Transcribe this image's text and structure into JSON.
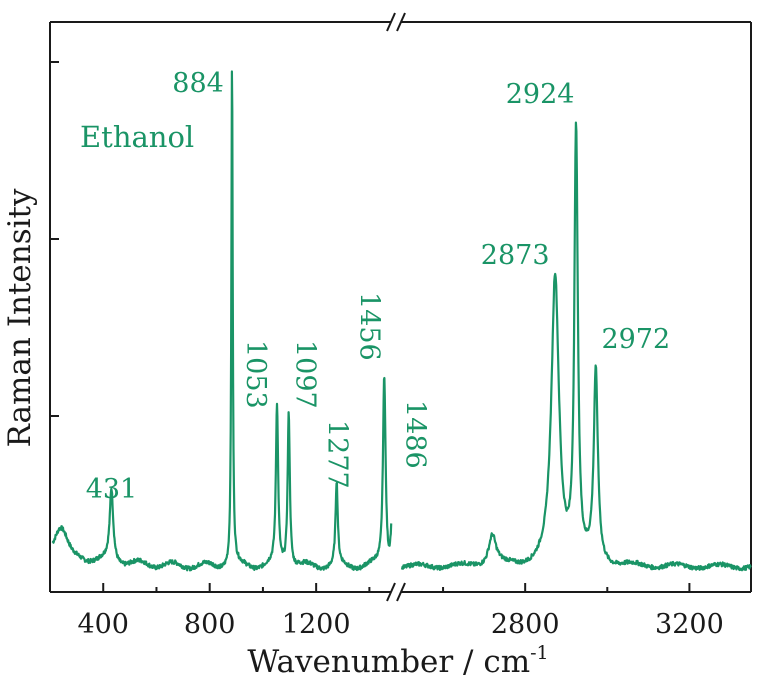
{
  "chart_data": {
    "type": "line",
    "title": "",
    "xlabel": "Wavenumber / cm",
    "xlabel_superscript": "-1",
    "ylabel": "Raman Intensity",
    "axis_break": true,
    "x_segments": [
      {
        "xlim": [
          200,
          1500
        ],
        "ticks": [
          "400",
          "800",
          "1200"
        ]
      },
      {
        "xlim": [
          2500,
          3350
        ],
        "ticks": [
          "2800",
          "3200"
        ]
      }
    ],
    "ylim": [
      0,
      1
    ],
    "grid": false,
    "series": [
      {
        "name": "Ethanol",
        "color": "#1a9466",
        "peaks": [
          {
            "x": 431,
            "y": 0.14,
            "width": 16
          },
          {
            "x": 884,
            "y": 0.98,
            "width": 6
          },
          {
            "x": 1053,
            "y": 0.31,
            "width": 10
          },
          {
            "x": 1097,
            "y": 0.3,
            "width": 10
          },
          {
            "x": 1277,
            "y": 0.16,
            "width": 10
          },
          {
            "x": 1456,
            "y": 0.38,
            "width": 12
          },
          {
            "x": 1486,
            "y": 0.12,
            "width": 14
          },
          {
            "x": 2720,
            "y": 0.06,
            "width": 22
          },
          {
            "x": 2873,
            "y": 0.56,
            "width": 22
          },
          {
            "x": 2924,
            "y": 0.84,
            "width": 10
          },
          {
            "x": 2972,
            "y": 0.37,
            "width": 12
          }
        ]
      }
    ],
    "peak_labels": [
      {
        "text": "431",
        "x": 431
      },
      {
        "text": "884",
        "x": 884
      },
      {
        "text": "1053",
        "x": 1053,
        "rotated": true
      },
      {
        "text": "1097",
        "x": 1097,
        "rotated": true
      },
      {
        "text": "1277",
        "x": 1277,
        "rotated": true
      },
      {
        "text": "1456",
        "x": 1456,
        "rotated": true
      },
      {
        "text": "1486",
        "x": 1486,
        "rotated": true
      },
      {
        "text": "2873",
        "x": 2873
      },
      {
        "text": "2924",
        "x": 2924
      },
      {
        "text": "2972",
        "x": 2972
      }
    ]
  }
}
